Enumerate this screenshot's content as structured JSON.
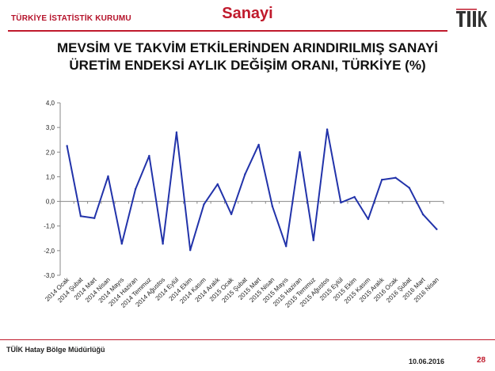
{
  "header": {
    "org": "TÜRKİYE İSTATİSTİK KURUMU",
    "section": "Sanayi",
    "logo_text": "TÜİK",
    "brand_color": "#c01a2c"
  },
  "footer": {
    "office": "TÜİK Hatay Bölge Müdürlüğü",
    "date": "10.06.2016",
    "page": "28"
  },
  "chart_data": {
    "type": "line",
    "title": "MEVSİM VE TAKVİM ETKİLERİNDEN ARINDIRILMIŞ SANAYİ ÜRETİM ENDEKSİ  AYLIK DEĞİŞİM ORANI, TÜRKİYE (%)",
    "title_lines": [
      "MEVSİM VE TAKVİM ETKİLERİNDEN ARINDIRILMIŞ SANAYİ",
      "ÜRETİM ENDEKSİ  AYLIK DEĞİŞİM ORANI, TÜRKİYE (%)"
    ],
    "xlabel": "",
    "ylabel": "",
    "ylim": [
      -3.0,
      4.0
    ],
    "yticks": [
      "4,0",
      "3,0",
      "2,0",
      "1,0",
      "0,0",
      "-1,0",
      "-2,0",
      "-3,0"
    ],
    "ytick_values": [
      4,
      3,
      2,
      1,
      0,
      -1,
      -2,
      -3
    ],
    "grid": false,
    "line_color": "#2233aa",
    "categories": [
      "2014 Ocak",
      "2014 Şubat",
      "2014 Mart",
      "2014 Nisan",
      "2014 Mayıs",
      "2014 Haziran",
      "2014 Temmuz",
      "2014 Ağustos",
      "2014 Eylül",
      "2014 Ekim",
      "2014 Kasım",
      "2014 Aralık",
      "2015 Ocak",
      "2015 Şubat",
      "2015 Mart",
      "2015 Nisan",
      "2015 Mayıs",
      "2015 Haziran",
      "2015 Temmuz",
      "2015 Ağustos",
      "2015 Eylül",
      "2015 Ekim",
      "2015 Kasım",
      "2015 Aralık",
      "2016 Ocak",
      "2016 Şubat",
      "2016 Mart",
      "2016 Nisan"
    ],
    "values": [
      2.25,
      -0.6,
      -0.68,
      1.02,
      -1.72,
      0.5,
      1.85,
      -1.72,
      2.8,
      -1.98,
      -0.12,
      0.7,
      -0.52,
      1.1,
      2.3,
      -0.2,
      -1.82,
      2.0,
      -1.58,
      2.92,
      -0.05,
      0.18,
      -0.72,
      0.88,
      0.96,
      0.55,
      -0.53,
      -1.13
    ]
  }
}
